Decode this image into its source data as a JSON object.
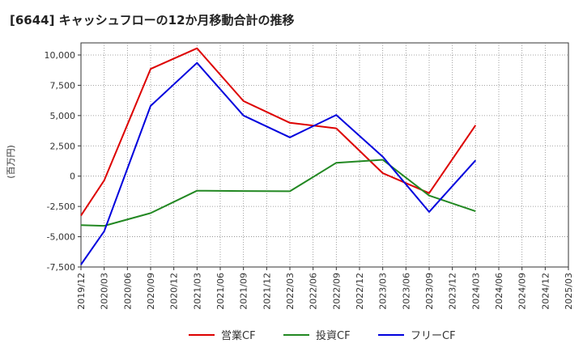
{
  "title": "[6644]  キャッシュフローの12か月移動合計の推移",
  "chart_data": {
    "type": "line",
    "title": "[6644]  キャッシュフローの12か月移動合計の推移",
    "ylabel": "(百万円)",
    "xlabel": "",
    "ylim": [
      -7500,
      11000
    ],
    "yticks": [
      10000,
      7500,
      5000,
      2500,
      0,
      -2500,
      -5000,
      -7500
    ],
    "ytick_labels": [
      "10,000",
      "7,500",
      "5,000",
      "2,500",
      "0",
      "-2,500",
      "-5,000",
      "-7,500"
    ],
    "x_ticks": [
      "2019/12",
      "2020/03",
      "2020/06",
      "2020/09",
      "2020/12",
      "2021/03",
      "2021/06",
      "2021/09",
      "2021/12",
      "2022/03",
      "2022/06",
      "2022/09",
      "2022/12",
      "2023/03",
      "2023/06",
      "2023/09",
      "2023/12",
      "2024/03",
      "2024/06",
      "2024/09",
      "2024/12",
      "2025/03"
    ],
    "grid": true,
    "legend_position": "bottom",
    "series": [
      {
        "name": "営業CF",
        "color": "#dd0000",
        "points": [
          {
            "x": "2019/12",
            "y": -3250
          },
          {
            "x": "2020/03",
            "y": -350
          },
          {
            "x": "2020/09",
            "y": 8850
          },
          {
            "x": "2021/03",
            "y": 10550
          },
          {
            "x": "2021/09",
            "y": 6200
          },
          {
            "x": "2022/03",
            "y": 4400
          },
          {
            "x": "2022/09",
            "y": 3950
          },
          {
            "x": "2023/03",
            "y": 250
          },
          {
            "x": "2023/09",
            "y": -1400
          },
          {
            "x": "2024/03",
            "y": 4200
          }
        ]
      },
      {
        "name": "投資CF",
        "color": "#228822",
        "points": [
          {
            "x": "2019/12",
            "y": -4050
          },
          {
            "x": "2020/03",
            "y": -4100
          },
          {
            "x": "2020/09",
            "y": -3050
          },
          {
            "x": "2021/03",
            "y": -1200
          },
          {
            "x": "2021/09",
            "y": -1230
          },
          {
            "x": "2022/03",
            "y": -1250
          },
          {
            "x": "2022/09",
            "y": 1100
          },
          {
            "x": "2023/03",
            "y": 1350
          },
          {
            "x": "2023/09",
            "y": -1600
          },
          {
            "x": "2024/03",
            "y": -2900
          }
        ]
      },
      {
        "name": "フリーCF",
        "color": "#0000dd",
        "points": [
          {
            "x": "2019/12",
            "y": -7300
          },
          {
            "x": "2020/03",
            "y": -4550
          },
          {
            "x": "2020/09",
            "y": 5800
          },
          {
            "x": "2021/03",
            "y": 9350
          },
          {
            "x": "2021/09",
            "y": 5000
          },
          {
            "x": "2022/03",
            "y": 3200
          },
          {
            "x": "2022/09",
            "y": 5050
          },
          {
            "x": "2023/03",
            "y": 1600
          },
          {
            "x": "2023/09",
            "y": -2950
          },
          {
            "x": "2024/03",
            "y": 1300
          }
        ]
      }
    ]
  }
}
